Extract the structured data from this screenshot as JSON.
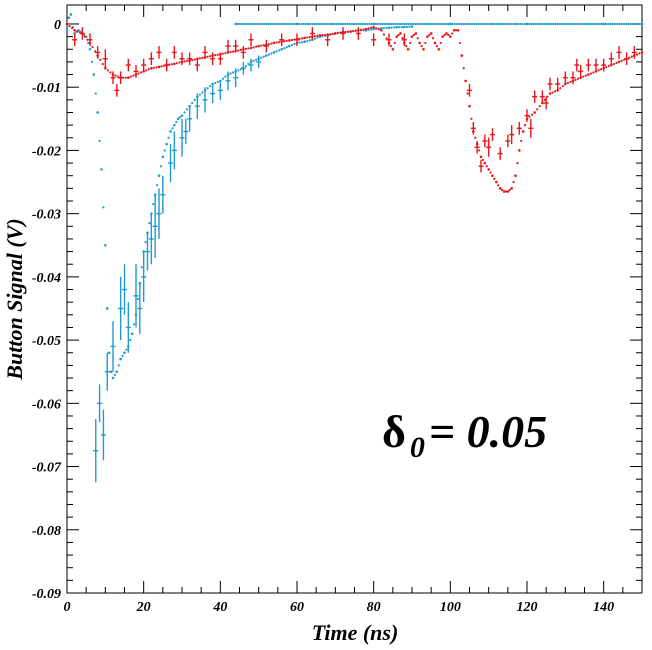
{
  "chart_data": {
    "type": "scatter",
    "xlabel": "Time (ns)",
    "ylabel": "Button Signal (V)",
    "xlim": [
      0,
      150
    ],
    "ylim": [
      -0.09,
      0.003
    ],
    "x_ticks": [
      0,
      20,
      40,
      60,
      80,
      100,
      120,
      140
    ],
    "y_ticks": [
      0,
      -0.01,
      -0.02,
      -0.03,
      -0.04,
      -0.05,
      -0.06,
      -0.07,
      -0.08,
      -0.09
    ],
    "x_tick_labels": [
      "0",
      "20",
      "40",
      "60",
      "80",
      "100",
      "120",
      "140"
    ],
    "y_tick_labels": [
      "0",
      "-0.01",
      "-0.02",
      "-0.03",
      "-0.04",
      "-0.05",
      "-0.06",
      "-0.07",
      "-0.08",
      "-0.09"
    ],
    "annotation": {
      "symbol": "δ",
      "subscript": "0",
      "text": " = 0.05"
    },
    "grid": false,
    "series": [
      {
        "color": "#1f9bd1",
        "points": [
          [
            0,
            -0.001
          ],
          [
            0.5,
            0.001
          ],
          [
            1,
            0.0015
          ],
          [
            1.5,
            -0.0005
          ],
          [
            2,
            -0.0015
          ],
          [
            3,
            -0.001
          ],
          [
            4,
            -0.0015
          ],
          [
            5,
            -0.002
          ],
          [
            6,
            -0.004
          ],
          [
            7,
            -0.008
          ],
          [
            8,
            -0.014
          ],
          [
            9,
            -0.023
          ],
          [
            10,
            -0.035
          ],
          [
            10.5,
            -0.045
          ],
          [
            11,
            -0.052
          ],
          [
            11.5,
            -0.055
          ],
          [
            12,
            -0.056
          ],
          [
            13,
            -0.055
          ],
          [
            14,
            -0.053
          ],
          [
            15,
            -0.052
          ],
          [
            16,
            -0.051
          ],
          [
            17,
            -0.049
          ],
          [
            18,
            -0.046
          ],
          [
            19,
            -0.041
          ],
          [
            20,
            -0.036
          ],
          [
            21,
            -0.033
          ],
          [
            22,
            -0.03
          ],
          [
            23,
            -0.027
          ],
          [
            24,
            -0.024
          ],
          [
            25,
            -0.021
          ],
          [
            26,
            -0.019
          ],
          [
            27,
            -0.017
          ],
          [
            28,
            -0.016
          ],
          [
            29,
            -0.015
          ],
          [
            30,
            -0.0145
          ],
          [
            32,
            -0.013
          ],
          [
            34,
            -0.0115
          ],
          [
            36,
            -0.0105
          ],
          [
            38,
            -0.0095
          ],
          [
            40,
            -0.009
          ],
          [
            42,
            -0.008
          ],
          [
            44,
            -0.0075
          ],
          [
            46,
            -0.007
          ],
          [
            48,
            -0.006
          ],
          [
            50,
            -0.0055
          ],
          [
            52,
            -0.005
          ],
          [
            54,
            -0.0045
          ],
          [
            56,
            -0.004
          ],
          [
            58,
            -0.0035
          ],
          [
            60,
            -0.003
          ],
          [
            62,
            -0.0028
          ],
          [
            64,
            -0.0025
          ],
          [
            66,
            -0.002
          ],
          [
            68,
            -0.0018
          ],
          [
            70,
            -0.0015
          ],
          [
            72,
            -0.0013
          ],
          [
            74,
            -0.0012
          ],
          [
            76,
            -0.001
          ],
          [
            78,
            -0.001
          ],
          [
            80,
            -0.0008
          ],
          [
            82,
            -0.0007
          ],
          [
            84,
            -0.0006
          ],
          [
            86,
            -0.0005
          ],
          [
            88,
            -0.0005
          ],
          [
            90,
            -0.0004
          ]
        ],
        "errorbars": [
          [
            7.5,
            -0.0675,
            0.005
          ],
          [
            8.5,
            -0.06,
            0.003
          ],
          [
            9.5,
            -0.065,
            0.004
          ],
          [
            10.5,
            -0.055,
            0.003
          ],
          [
            12,
            -0.051,
            0.004
          ],
          [
            14,
            -0.045,
            0.005
          ],
          [
            15,
            -0.042,
            0.004
          ],
          [
            16,
            -0.048,
            0.004
          ],
          [
            18,
            -0.043,
            0.005
          ],
          [
            19,
            -0.045,
            0.004
          ],
          [
            20,
            -0.04,
            0.004
          ],
          [
            21,
            -0.036,
            0.003
          ],
          [
            22,
            -0.034,
            0.004
          ],
          [
            23,
            -0.032,
            0.005
          ],
          [
            24,
            -0.03,
            0.004
          ],
          [
            25,
            -0.027,
            0.003
          ],
          [
            27,
            -0.022,
            0.003
          ],
          [
            28,
            -0.02,
            0.003
          ],
          [
            30,
            -0.018,
            0.003
          ],
          [
            31,
            -0.017,
            0.002
          ],
          [
            32,
            -0.015,
            0.002
          ],
          [
            34,
            -0.013,
            0.002
          ],
          [
            36,
            -0.012,
            0.002
          ],
          [
            38,
            -0.011,
            0.0015
          ],
          [
            40,
            -0.0105,
            0.0015
          ],
          [
            42,
            -0.009,
            0.0015
          ],
          [
            44,
            -0.0085,
            0.0015
          ],
          [
            46,
            -0.007,
            0.001
          ],
          [
            48,
            -0.0065,
            0.001
          ],
          [
            50,
            -0.006,
            0.001
          ]
        ]
      },
      {
        "color": "#1f9bd1",
        "points": [
          [
            44,
            0.0
          ],
          [
            60,
            0.0
          ],
          [
            80,
            0.0
          ],
          [
            100,
            0.0
          ],
          [
            120,
            0.0
          ],
          [
            140,
            0.0
          ],
          [
            150,
            0.0
          ]
        ]
      },
      {
        "color": "#e8161b",
        "points": [
          [
            0,
            0.0
          ],
          [
            2,
            -0.001
          ],
          [
            4,
            -0.0015
          ],
          [
            6,
            -0.003
          ],
          [
            8,
            -0.005
          ],
          [
            10,
            -0.007
          ],
          [
            12,
            -0.008
          ],
          [
            14,
            -0.0085
          ],
          [
            16,
            -0.0085
          ],
          [
            18,
            -0.008
          ],
          [
            20,
            -0.0075
          ],
          [
            22,
            -0.007
          ],
          [
            24,
            -0.0068
          ],
          [
            26,
            -0.0065
          ],
          [
            28,
            -0.0063
          ],
          [
            30,
            -0.006
          ],
          [
            32,
            -0.0058
          ],
          [
            34,
            -0.0055
          ],
          [
            36,
            -0.0053
          ],
          [
            38,
            -0.005
          ],
          [
            40,
            -0.0048
          ],
          [
            42,
            -0.0045
          ],
          [
            44,
            -0.0043
          ],
          [
            46,
            -0.004
          ],
          [
            48,
            -0.0038
          ],
          [
            50,
            -0.0035
          ],
          [
            52,
            -0.0033
          ],
          [
            54,
            -0.003
          ],
          [
            56,
            -0.0028
          ],
          [
            58,
            -0.0026
          ],
          [
            60,
            -0.0024
          ],
          [
            62,
            -0.0022
          ],
          [
            64,
            -0.002
          ],
          [
            66,
            -0.0018
          ],
          [
            68,
            -0.0017
          ],
          [
            70,
            -0.0015
          ],
          [
            72,
            -0.0013
          ],
          [
            74,
            -0.0012
          ],
          [
            76,
            -0.001
          ],
          [
            78,
            -0.0008
          ],
          [
            80,
            -0.0005
          ],
          [
            82,
            -0.001
          ],
          [
            84,
            -0.003
          ],
          [
            85,
            -0.004
          ],
          [
            86,
            -0.002
          ],
          [
            87,
            -0.0015
          ],
          [
            88,
            -0.003
          ],
          [
            89,
            -0.004
          ],
          [
            90,
            -0.002
          ],
          [
            91,
            -0.0015
          ],
          [
            92,
            -0.003
          ],
          [
            93,
            -0.004
          ],
          [
            94,
            -0.002
          ],
          [
            95,
            -0.0015
          ],
          [
            96,
            -0.003
          ],
          [
            97,
            -0.004
          ],
          [
            98,
            -0.002
          ],
          [
            99,
            -0.0015
          ],
          [
            100,
            -0.002
          ],
          [
            101,
            -0.001
          ],
          [
            102,
            -0.001
          ],
          [
            103,
            -0.005
          ],
          [
            104,
            -0.009
          ],
          [
            105,
            -0.013
          ],
          [
            106,
            -0.017
          ],
          [
            107,
            -0.019
          ],
          [
            108,
            -0.021
          ],
          [
            109,
            -0.022
          ],
          [
            110,
            -0.023
          ],
          [
            111,
            -0.024
          ],
          [
            112,
            -0.025
          ],
          [
            113,
            -0.026
          ],
          [
            114,
            -0.0265
          ],
          [
            115,
            -0.0265
          ],
          [
            116,
            -0.026
          ],
          [
            117,
            -0.024
          ],
          [
            118,
            -0.02
          ],
          [
            119,
            -0.017
          ],
          [
            120,
            -0.015
          ],
          [
            122,
            -0.014
          ],
          [
            124,
            -0.0125
          ],
          [
            126,
            -0.011
          ],
          [
            128,
            -0.0105
          ],
          [
            130,
            -0.0095
          ],
          [
            132,
            -0.009
          ],
          [
            134,
            -0.0085
          ],
          [
            136,
            -0.008
          ],
          [
            138,
            -0.0075
          ],
          [
            140,
            -0.007
          ],
          [
            142,
            -0.0065
          ],
          [
            144,
            -0.006
          ],
          [
            146,
            -0.0055
          ],
          [
            148,
            -0.005
          ],
          [
            150,
            -0.0045
          ]
        ],
        "errorbars": [
          [
            2,
            -0.0025,
            0.001
          ],
          [
            4,
            -0.0015,
            0.001
          ],
          [
            6,
            -0.0025,
            0.001
          ],
          [
            8,
            -0.0045,
            0.001
          ],
          [
            10,
            -0.0055,
            0.0015
          ],
          [
            12,
            -0.0085,
            0.001
          ],
          [
            13,
            -0.0105,
            0.001
          ],
          [
            14,
            -0.0085,
            0.001
          ],
          [
            16,
            -0.0065,
            0.001
          ],
          [
            18,
            -0.0075,
            0.001
          ],
          [
            20,
            -0.0065,
            0.001
          ],
          [
            22,
            -0.0055,
            0.001
          ],
          [
            24,
            -0.0045,
            0.001
          ],
          [
            26,
            -0.0065,
            0.001
          ],
          [
            28,
            -0.0045,
            0.001
          ],
          [
            30,
            -0.0055,
            0.001
          ],
          [
            32,
            -0.0055,
            0.001
          ],
          [
            34,
            -0.0065,
            0.001
          ],
          [
            36,
            -0.0045,
            0.001
          ],
          [
            38,
            -0.0055,
            0.001
          ],
          [
            40,
            -0.0055,
            0.001
          ],
          [
            42,
            -0.0035,
            0.001
          ],
          [
            44,
            -0.0035,
            0.001
          ],
          [
            46,
            -0.0045,
            0.001
          ],
          [
            48,
            -0.0025,
            0.001
          ],
          [
            52,
            -0.0035,
            0.001
          ],
          [
            56,
            -0.0025,
            0.001
          ],
          [
            60,
            -0.0025,
            0.001
          ],
          [
            64,
            -0.0015,
            0.001
          ],
          [
            68,
            -0.0025,
            0.001
          ],
          [
            72,
            -0.0015,
            0.001
          ],
          [
            76,
            -0.0015,
            0.001
          ],
          [
            80,
            -0.0025,
            0.001
          ],
          [
            84,
            -0.0025,
            0.001
          ],
          [
            88,
            -0.0025,
            0.001
          ],
          [
            105,
            -0.0105,
            0.001
          ],
          [
            106,
            -0.0165,
            0.001
          ],
          [
            107,
            -0.0195,
            0.001
          ],
          [
            108,
            -0.0225,
            0.001
          ],
          [
            109,
            -0.0185,
            0.001
          ],
          [
            110,
            -0.0195,
            0.0015
          ],
          [
            111,
            -0.0175,
            0.001
          ],
          [
            113,
            -0.0205,
            0.001
          ],
          [
            115,
            -0.0185,
            0.001
          ],
          [
            116,
            -0.0175,
            0.0015
          ],
          [
            118,
            -0.0165,
            0.001
          ],
          [
            120,
            -0.0145,
            0.001
          ],
          [
            121,
            -0.0165,
            0.0015
          ],
          [
            122,
            -0.0115,
            0.001
          ],
          [
            124,
            -0.0115,
            0.001
          ],
          [
            125,
            -0.0125,
            0.001
          ],
          [
            126,
            -0.0095,
            0.001
          ],
          [
            128,
            -0.0095,
            0.001
          ],
          [
            130,
            -0.0085,
            0.001
          ],
          [
            132,
            -0.0085,
            0.001
          ],
          [
            133,
            -0.0065,
            0.001
          ],
          [
            134,
            -0.0075,
            0.001
          ],
          [
            136,
            -0.0065,
            0.001
          ],
          [
            138,
            -0.0065,
            0.001
          ],
          [
            140,
            -0.0065,
            0.001
          ],
          [
            142,
            -0.0055,
            0.001
          ],
          [
            144,
            -0.0045,
            0.001
          ],
          [
            146,
            -0.0055,
            0.001
          ],
          [
            148,
            -0.0045,
            0.001
          ]
        ]
      }
    ]
  }
}
